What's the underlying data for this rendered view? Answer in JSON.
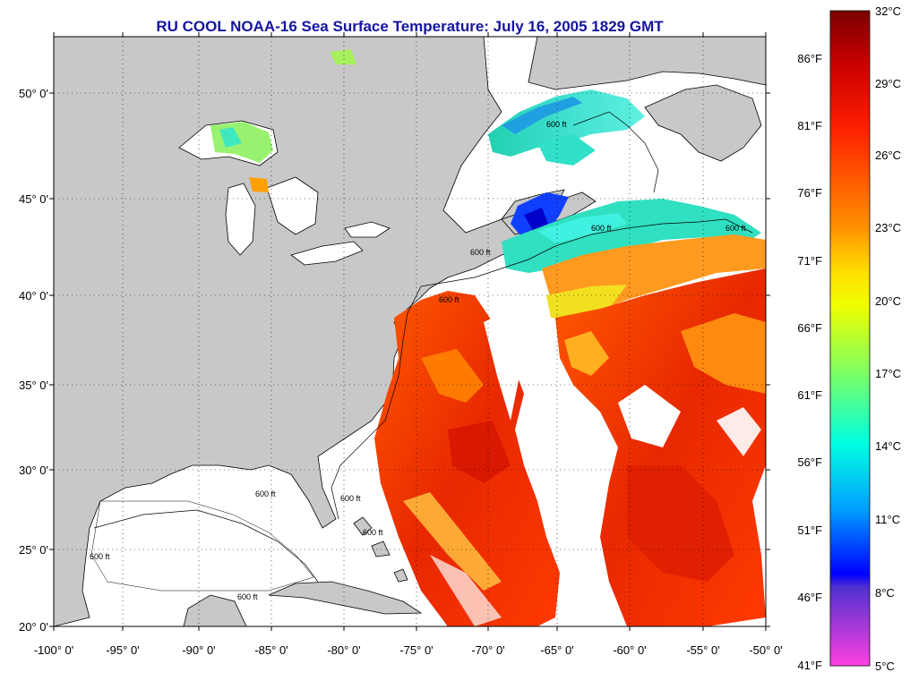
{
  "title": "RU COOL  NOAA-16  Sea Surface Temperature:  July 16, 2005 1829 GMT",
  "map": {
    "lat_ticks": [
      "50° 0'",
      "45° 0'",
      "40° 0'",
      "35° 0'",
      "30° 0'",
      "25° 0'",
      "20° 0'"
    ],
    "lon_ticks": [
      "-100° 0'",
      "-95° 0'",
      "-90° 0'",
      "-85° 0'",
      "-80° 0'",
      "-75° 0'",
      "-70° 0'",
      "-65° 0'",
      "-60° 0'",
      "-55° 0'",
      "-50° 0'"
    ],
    "isobath_label": "600 ft",
    "land_color": "#c8c8c8",
    "no_data_color": "#ffffff"
  },
  "colorbar": {
    "celsius": [
      "32°C",
      "29°C",
      "26°C",
      "23°C",
      "20°C",
      "17°C",
      "14°C",
      "11°C",
      "8°C",
      "5°C"
    ],
    "fahrenheit": [
      "86°F",
      "81°F",
      "76°F",
      "71°F",
      "66°F",
      "61°F",
      "56°F",
      "51°F",
      "46°F",
      "41°F"
    ]
  }
}
